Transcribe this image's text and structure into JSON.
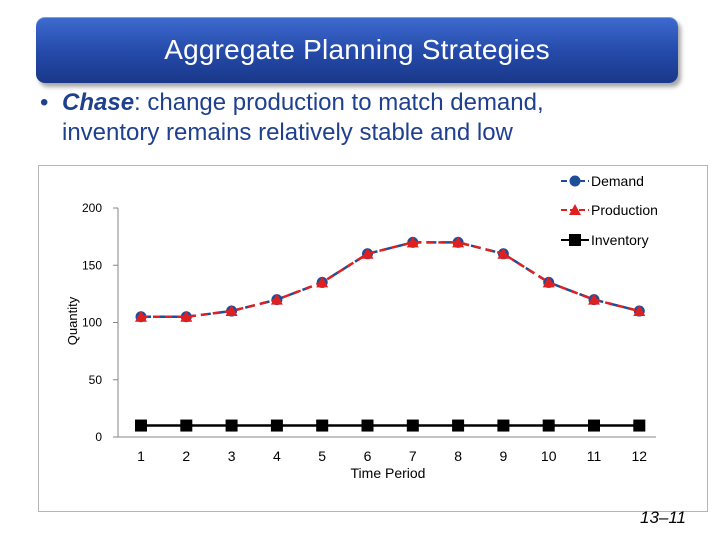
{
  "title": "Aggregate Planning Strategies",
  "bullet": {
    "symbol": "•",
    "term": "Chase",
    "line1_rest": ": change production to match demand,",
    "line2": "inventory remains relatively stable and low"
  },
  "chart_data": {
    "type": "line",
    "title": "",
    "xlabel": "Time Period",
    "ylabel": "Quantity",
    "categories": [
      "1",
      "2",
      "3",
      "4",
      "5",
      "6",
      "7",
      "8",
      "9",
      "10",
      "11",
      "12"
    ],
    "yticks": [
      "0",
      "50",
      "100",
      "150",
      "200"
    ],
    "ylim": [
      0,
      210
    ],
    "series": [
      {
        "name": "Demand",
        "values": [
          105,
          105,
          110,
          120,
          135,
          160,
          170,
          170,
          160,
          135,
          120,
          110
        ],
        "color": "#1f4e99",
        "marker": "circle",
        "dash": "dashed"
      },
      {
        "name": "Production",
        "values": [
          105,
          105,
          110,
          120,
          135,
          160,
          170,
          170,
          160,
          135,
          120,
          110
        ],
        "color": "#e02020",
        "marker": "triangle",
        "dash": "dashed"
      },
      {
        "name": "Inventory",
        "values": [
          10,
          10,
          10,
          10,
          10,
          10,
          10,
          10,
          10,
          10,
          10,
          10
        ],
        "color": "#000000",
        "marker": "square",
        "dash": "solid"
      }
    ],
    "legend": "top-right"
  },
  "slide_number": "13–11"
}
